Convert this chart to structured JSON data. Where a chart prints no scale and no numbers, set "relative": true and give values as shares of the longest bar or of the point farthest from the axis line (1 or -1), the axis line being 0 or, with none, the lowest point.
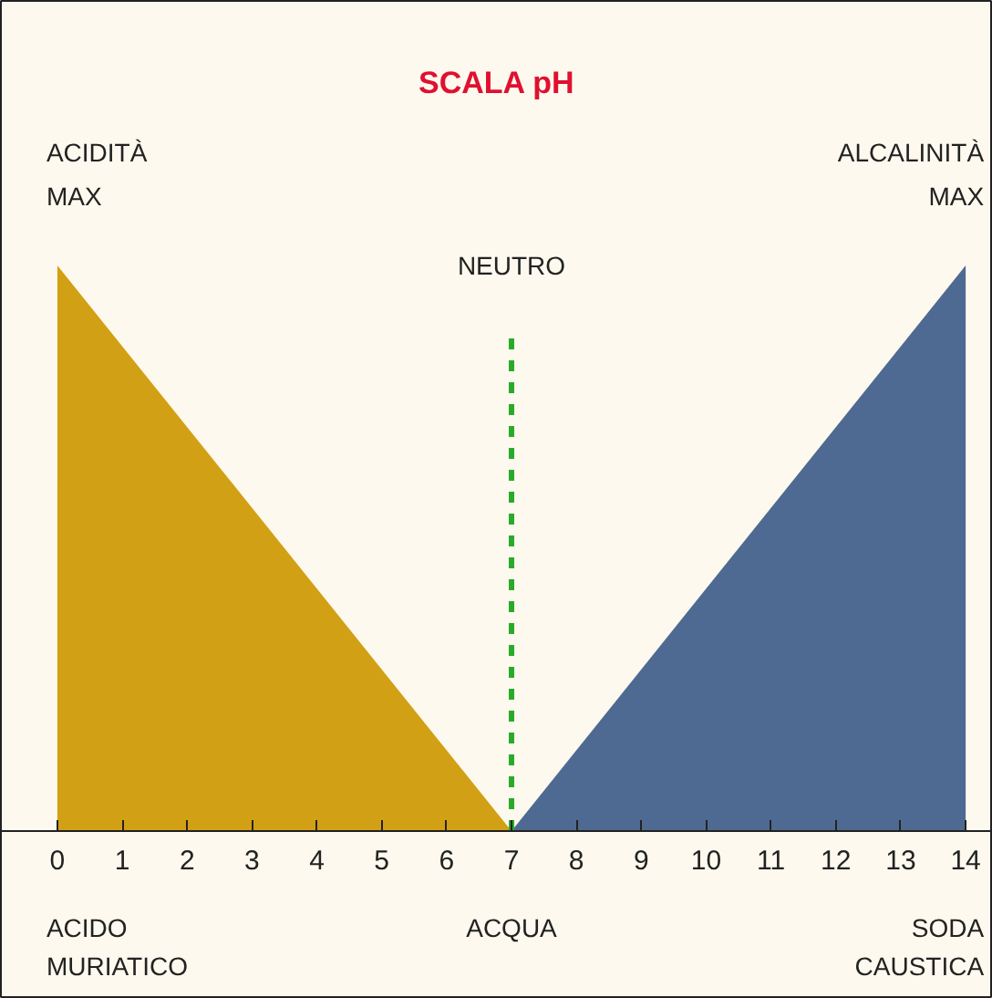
{
  "chart_data": {
    "type": "area",
    "title": "SCALA pH",
    "relative": true,
    "xlim": [
      -0.87,
      14.42
    ],
    "xticks": [
      0,
      1,
      2,
      3,
      4,
      5,
      6,
      7,
      8,
      9,
      10,
      11,
      12,
      13,
      14
    ],
    "grid": false,
    "tick_labels": "x",
    "series": [
      {
        "color": "#d2a014",
        "x": [
          0,
          7
        ],
        "values": [
          1,
          0
        ]
      },
      {
        "color": "#4e6a92",
        "x": [
          7,
          14
        ],
        "values": [
          0,
          1
        ]
      }
    ],
    "ref_lines": [
      {
        "axis": "x",
        "value": 7,
        "label": "NEUTRO",
        "color": "#2aaa2a",
        "line_style": "dashed"
      }
    ],
    "annotations": [
      {
        "text": "ACIDITÀ\nMAX",
        "x": 0,
        "y": 1
      },
      {
        "text": "ALCALINITÀ\nMAX",
        "x": 14,
        "y": 1
      },
      "ACIDO\nMURIATICO",
      "ACQUA",
      "SODA\nCAUSTICA"
    ]
  }
}
